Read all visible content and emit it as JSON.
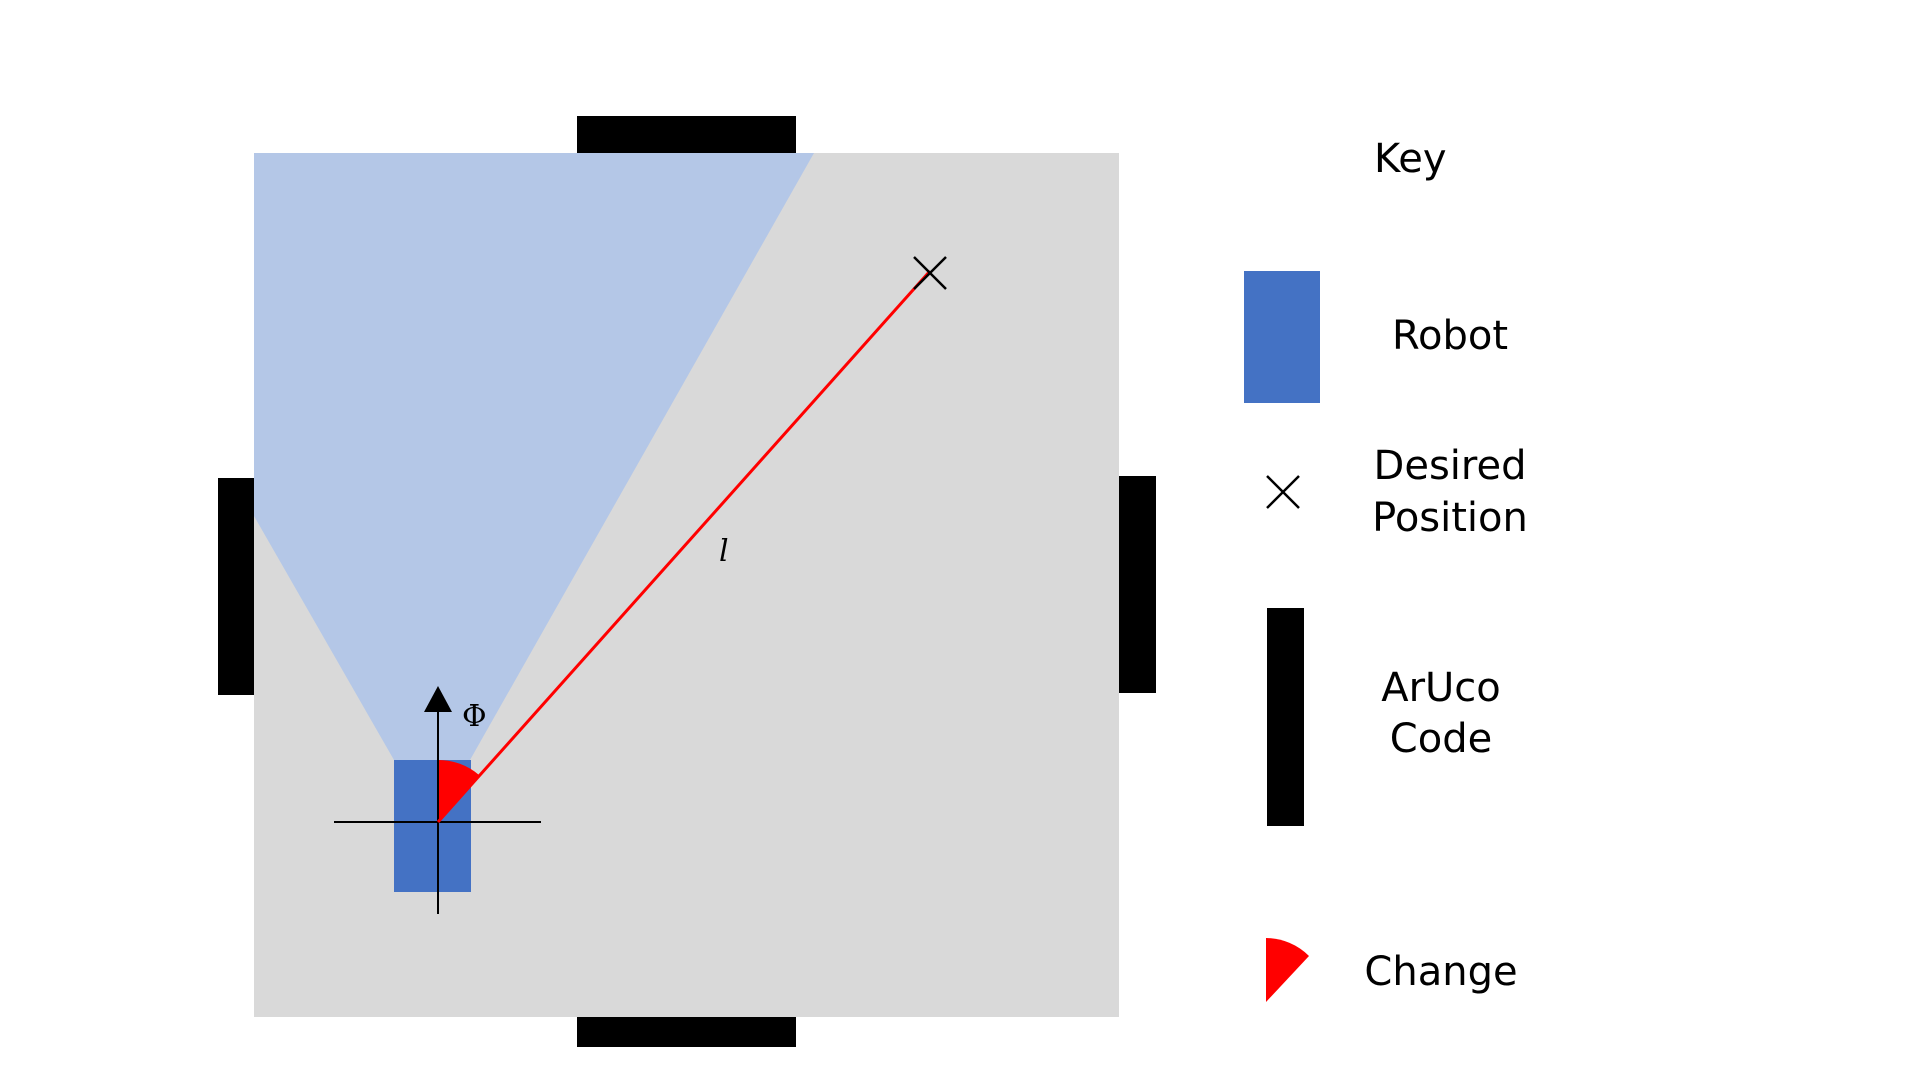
{
  "diagram": {
    "colors": {
      "arena": "#d9d9d9",
      "field_of_view": "#b4c7e7",
      "robot": "#4472c4",
      "aruco": "#000000",
      "change": "#ff0000",
      "line": "#ff0000",
      "axes": "#000000"
    },
    "labels": {
      "line_length": "l",
      "heading": "Φ"
    }
  },
  "legend": {
    "title": "Key",
    "items": [
      {
        "id": "robot",
        "label_lines": [
          "Robot"
        ],
        "icon": "blue-rectangle"
      },
      {
        "id": "desired-position",
        "label_lines": [
          "Desired",
          "Position"
        ],
        "icon": "cross-icon"
      },
      {
        "id": "aruco-code",
        "label_lines": [
          "ArUco",
          "Code"
        ],
        "icon": "black-bar"
      },
      {
        "id": "change",
        "label_lines": [
          "Change"
        ],
        "icon": "red-wedge"
      }
    ]
  }
}
